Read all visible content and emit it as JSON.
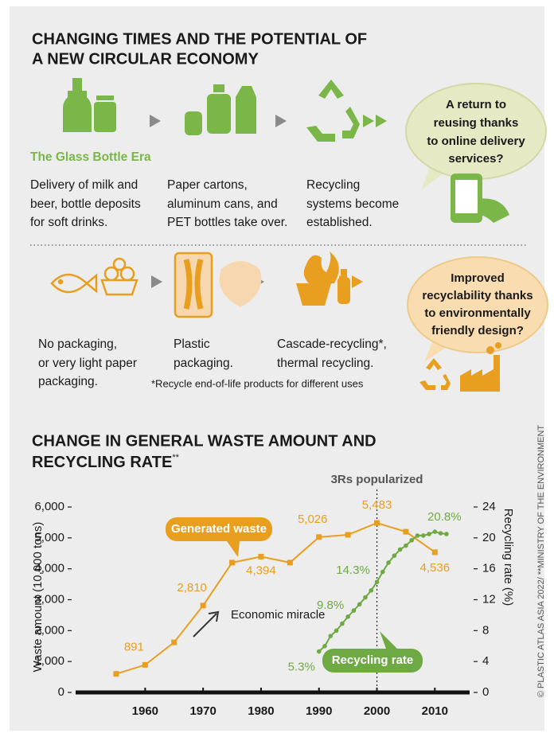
{
  "header": {
    "title": [
      "CHANGING TIMES AND THE POTENTIAL OF",
      "A NEW CIRCULAR ECONOMY"
    ]
  },
  "stages_top": [
    {
      "label": "The Glass Bottle Era",
      "text": [
        "Delivery of milk and",
        "beer, bottle deposits",
        "for soft drinks."
      ]
    },
    {
      "text": [
        "Paper cartons,",
        "aluminum cans, and",
        "PET bottles take over."
      ]
    },
    {
      "text": [
        "Recycling",
        "systems become",
        "established."
      ]
    }
  ],
  "bubble_top": [
    "A return to",
    "reusing thanks",
    "to online delivery",
    "services?"
  ],
  "stages_bottom": [
    {
      "text": [
        "No packaging,",
        "or very light paper",
        "packaging."
      ]
    },
    {
      "text": [
        "Plastic",
        "packaging."
      ]
    },
    {
      "text": [
        "Cascade-recycling*,",
        "thermal recycling."
      ]
    }
  ],
  "footnote": "*Recycle end-of-life products for different uses",
  "bubble_bottom": [
    "Improved",
    "recyclability thanks",
    "to environmentally",
    "friendly design?"
  ],
  "credit": "© PLASTIC ATLAS ASIA 2022/ **MINISTRY OF THE ENVIRONMENT",
  "chart_data": {
    "type": "line",
    "title": [
      "CHANGE IN GENERAL WASTE AMOUNT AND",
      "RECYCLING RATE"
    ],
    "title_note": "**",
    "ylabel": "Waste amount (10,000 tons)",
    "y2label": "Recycling rate (%)",
    "xlim": [
      1948,
      2016
    ],
    "xticks": [
      1960,
      1970,
      1980,
      1990,
      2000,
      2010
    ],
    "ylim": [
      0,
      6000
    ],
    "yticks": [
      0,
      {
        "value": 1000,
        "label": "1,000"
      },
      {
        "value": 2000,
        "label": "2,000"
      },
      {
        "value": 3000,
        "label": "3,000"
      },
      {
        "value": 4000,
        "label": "4,000"
      },
      {
        "value": 5000,
        "label": "5,000"
      },
      {
        "value": 6000,
        "label": "6,000"
      }
    ],
    "y2lim": [
      0,
      24
    ],
    "y2ticks": [
      0,
      4,
      8,
      12,
      16,
      20,
      24
    ],
    "series": [
      {
        "name": "Generated waste",
        "color": "#e89e1e",
        "axis": "y",
        "x": [
          1955,
          1960,
          1965,
          1970,
          1975,
          1980,
          1985,
          1990,
          1995,
          2000,
          2005,
          2010
        ],
        "values": [
          600,
          891,
          1620,
          2810,
          4200,
          4394,
          4200,
          5026,
          5100,
          5483,
          5200,
          4536
        ],
        "value_labels": [
          null,
          "891",
          null,
          "2,810",
          null,
          "4,394",
          null,
          "5,026",
          null,
          "5,483",
          null,
          "4,536"
        ]
      },
      {
        "name": "Recycling rate",
        "color": "#6fa944",
        "axis": "y2",
        "x": [
          1990,
          1991,
          1992,
          1993,
          1994,
          1995,
          1996,
          1997,
          1998,
          1999,
          2000,
          2001,
          2002,
          2003,
          2004,
          2005,
          2006,
          2007,
          2008,
          2009,
          2010,
          2011,
          2012
        ],
        "values": [
          5.3,
          6.0,
          7.3,
          8.0,
          8.9,
          9.8,
          10.6,
          11.4,
          12.3,
          13.2,
          14.3,
          15.6,
          16.8,
          17.7,
          18.5,
          19.0,
          19.7,
          20.3,
          20.3,
          20.5,
          20.8,
          20.6,
          20.5
        ],
        "value_labels": [
          "5.3%",
          null,
          null,
          null,
          null,
          "9.8%",
          null,
          null,
          null,
          null,
          "14.3%",
          null,
          null,
          null,
          null,
          null,
          null,
          null,
          null,
          null,
          "20.8%",
          null,
          null
        ]
      }
    ],
    "annotations": [
      {
        "text": "3Rs popularized",
        "x": 2000
      },
      {
        "text": "Economic miracle"
      }
    ]
  }
}
